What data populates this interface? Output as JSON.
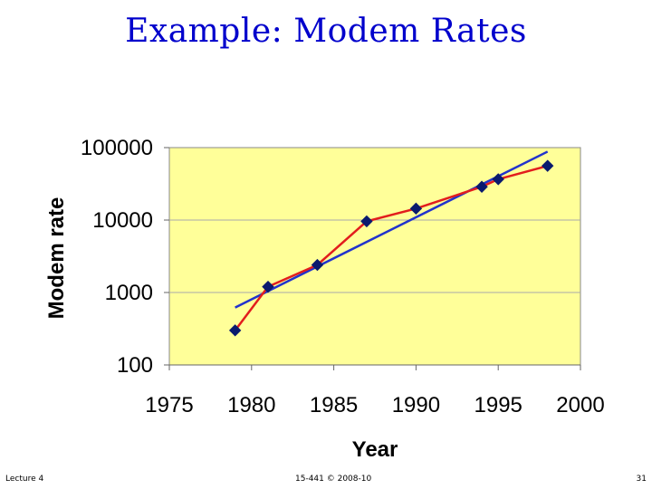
{
  "slide": {
    "title": "Example: Modem Rates"
  },
  "footer": {
    "left": "Lecture 4",
    "center": "15-441 © 2008-10",
    "right": "31"
  },
  "colors": {
    "title": "#0000cc",
    "plot_bg": "#ffff99",
    "data_line": "#e21d1d",
    "trend_line": "#2233cc",
    "marker": "#0a1a6e",
    "grid": "#aaaaaa"
  },
  "chart_data": {
    "type": "line",
    "xlabel": "Year",
    "ylabel": "Modem rate",
    "xlim": [
      1975,
      2000
    ],
    "ylim": [
      100,
      100000
    ],
    "y_scale": "log",
    "grid": "horizontal",
    "x_ticks": [
      "1975",
      "1980",
      "1985",
      "1990",
      "1995",
      "2000"
    ],
    "y_ticks": [
      "100",
      "1000",
      "10000",
      "100000"
    ],
    "series": [
      {
        "marker": "diamond",
        "x": [
          1979,
          1981,
          1984,
          1987,
          1990,
          1994,
          1995,
          1998
        ],
        "y": [
          300,
          1200,
          2400,
          9600,
          14400,
          28800,
          36600,
          56000
        ]
      },
      {
        "marker": "none",
        "x": [
          1979,
          1998
        ],
        "y": [
          620,
          88000
        ]
      }
    ]
  }
}
